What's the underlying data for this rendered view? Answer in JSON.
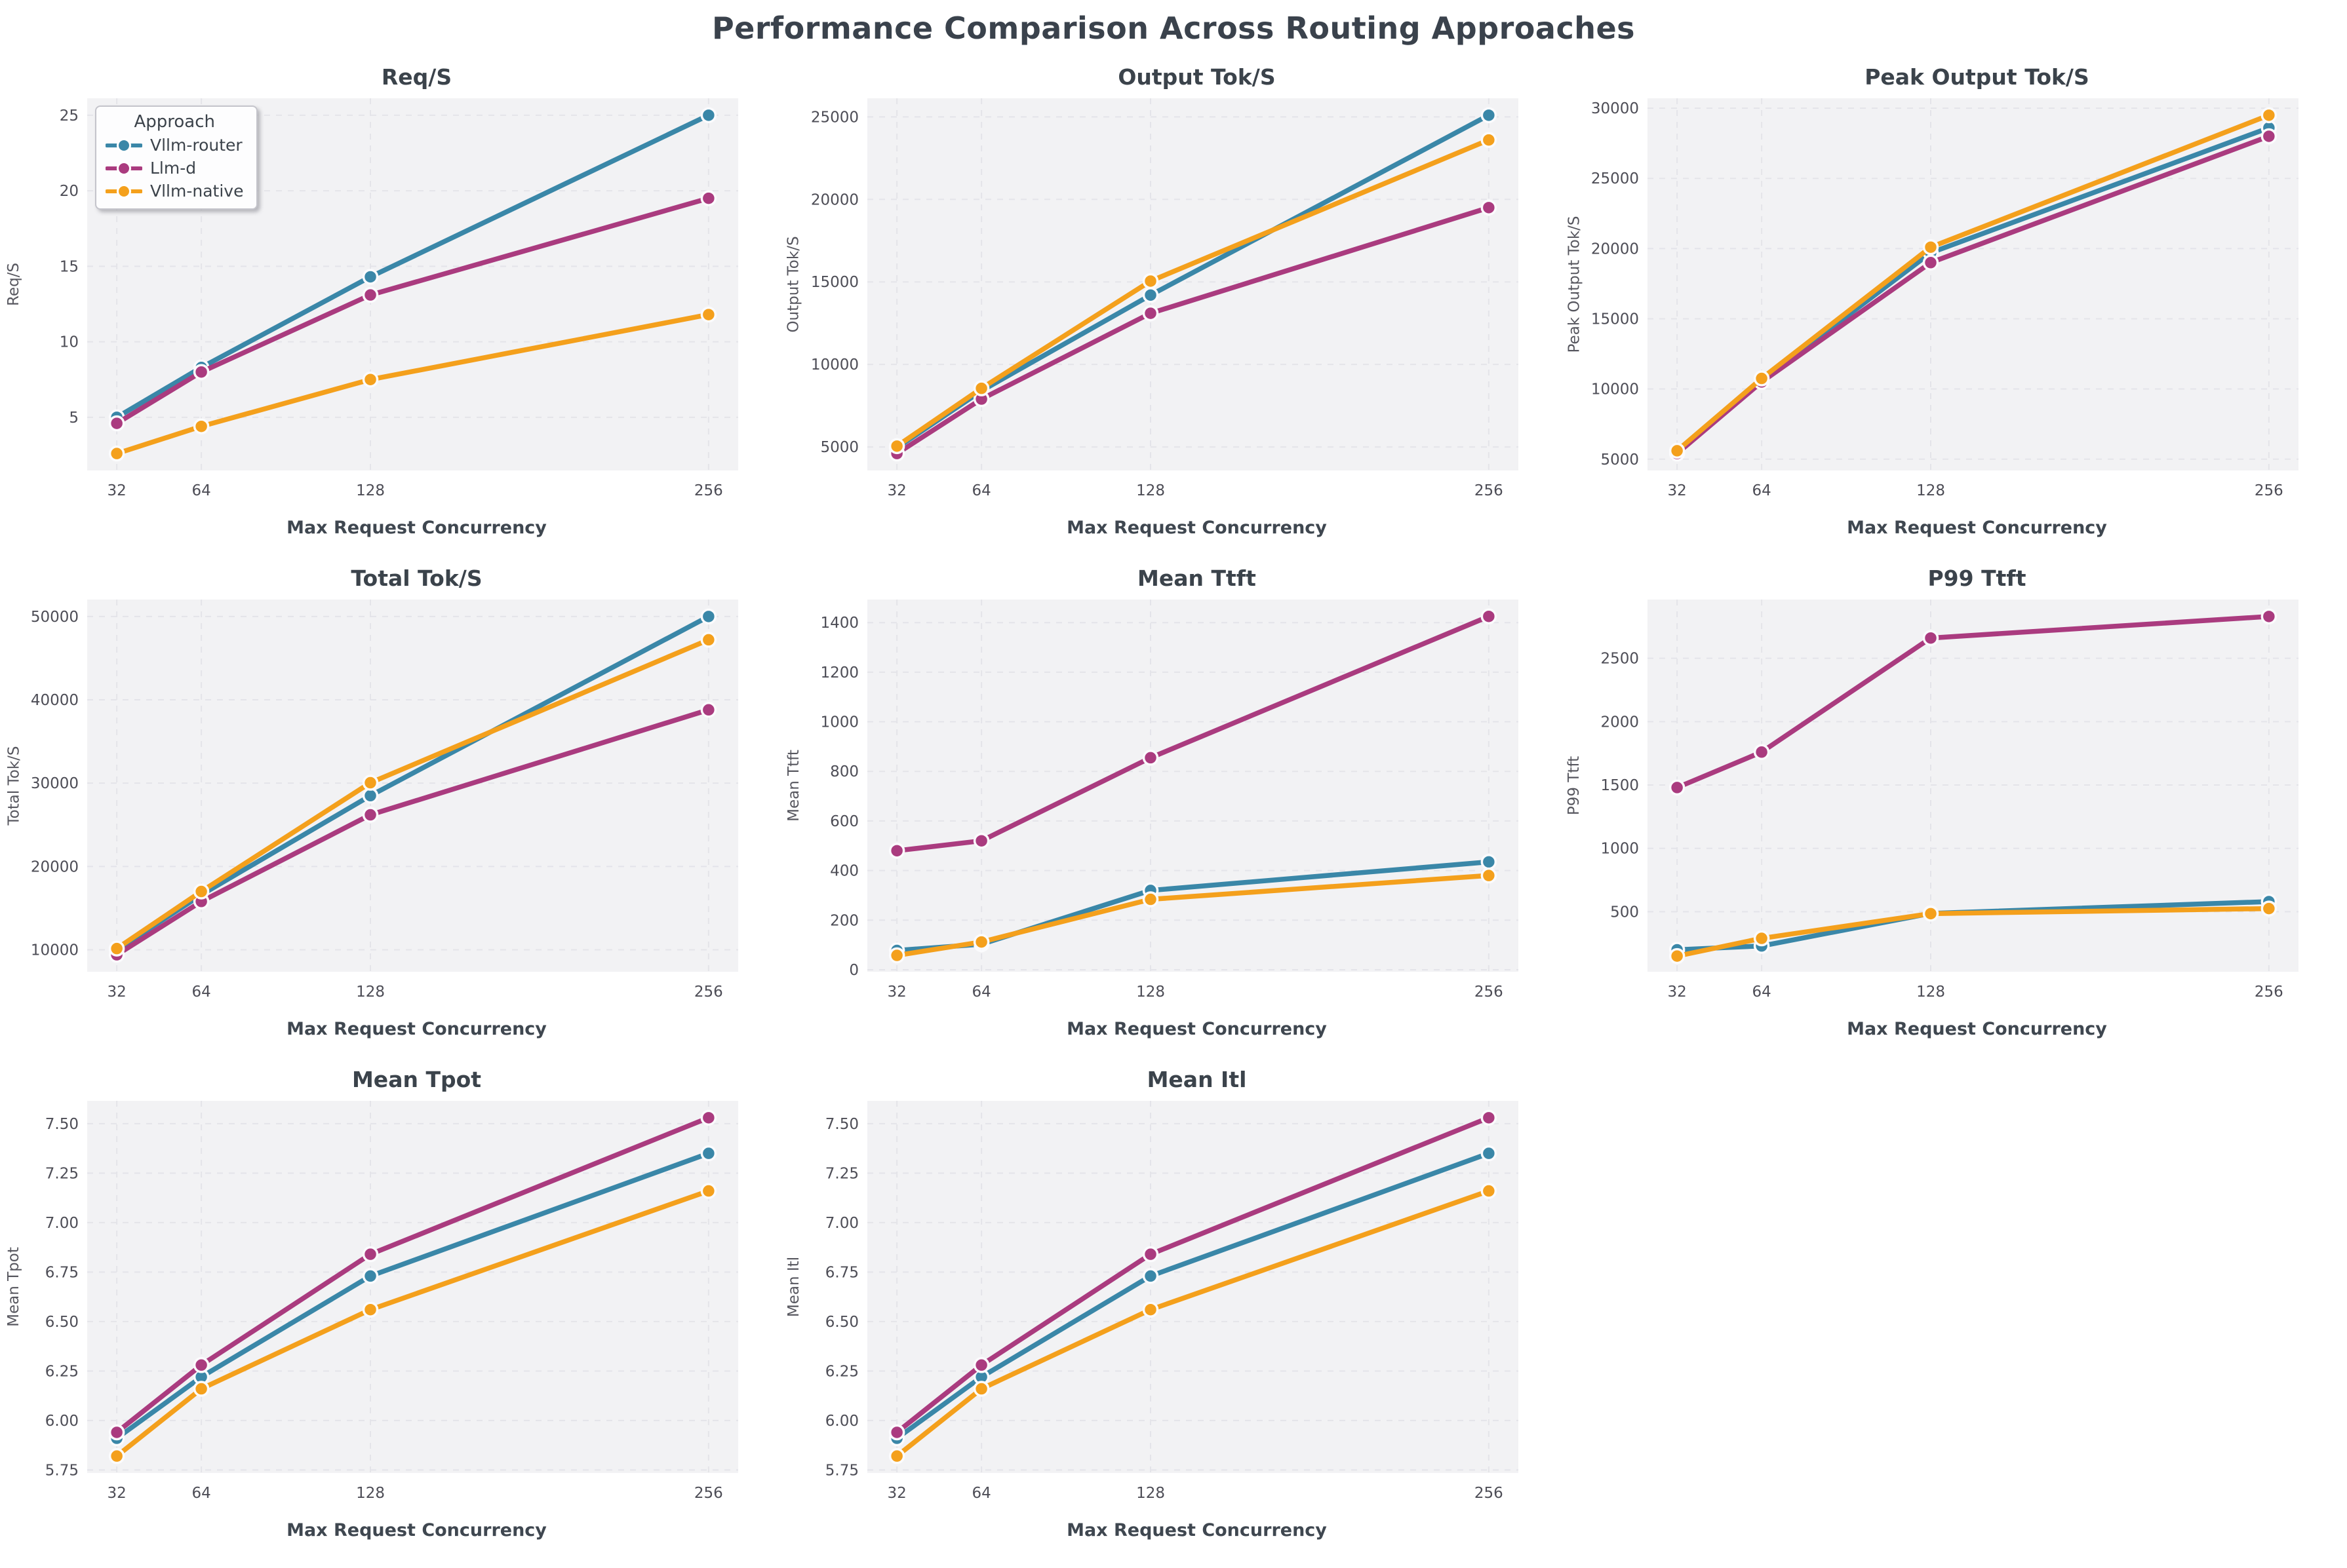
{
  "figure_title": "Performance Comparison Across Routing Approaches",
  "style": {
    "axes_bg": "#f2f2f4",
    "grid": "#e4e4e9",
    "tick": "#4d4d56",
    "marker_edge": "#fbfbfd",
    "title_color": "#3b434b",
    "series_colors": {
      "vllm_router": "#3a87a8",
      "llm_d": "#aa3b7f",
      "vllm_native": "#f4a01c"
    }
  },
  "legend": {
    "title": "Approach",
    "items": [
      "Vllm-router",
      "Llm-d",
      "Vllm-native"
    ]
  },
  "chart_data": [
    {
      "type": "line",
      "title": "Req/S",
      "xlabel": "Max Request Concurrency",
      "ylabel": "Req/S",
      "x": [
        32,
        64,
        128,
        256
      ],
      "xticks": [
        32,
        64,
        128,
        256
      ],
      "xlim": [
        20.8,
        267.2
      ],
      "ylim": [
        1.48,
        26.12
      ],
      "yticks": [
        5,
        10,
        15,
        20,
        25
      ],
      "grid": true,
      "legend_position": "upper-left",
      "show_legend": true,
      "series": [
        {
          "name": "Vllm-router",
          "color": "#3a87a8",
          "values": [
            5.0,
            8.3,
            14.3,
            25.0
          ]
        },
        {
          "name": "Llm-d",
          "color": "#aa3b7f",
          "values": [
            4.6,
            8.0,
            13.1,
            19.5
          ]
        },
        {
          "name": "Vllm-native",
          "color": "#f4a01c",
          "values": [
            2.6,
            4.4,
            7.5,
            11.8
          ]
        }
      ]
    },
    {
      "type": "line",
      "title": "Output Tok/S",
      "xlabel": "Max Request Concurrency",
      "ylabel": "Output Tok/S",
      "x": [
        32,
        64,
        128,
        256
      ],
      "xticks": [
        32,
        64,
        128,
        256
      ],
      "xlim": [
        20.8,
        267.2
      ],
      "ylim": [
        3575,
        26125
      ],
      "yticks": [
        5000,
        10000,
        15000,
        20000,
        25000
      ],
      "grid": true,
      "show_legend": false,
      "series": [
        {
          "name": "Vllm-router",
          "color": "#3a87a8",
          "values": [
            4950,
            8400,
            14200,
            25100
          ]
        },
        {
          "name": "Llm-d",
          "color": "#aa3b7f",
          "values": [
            4600,
            7900,
            13100,
            19500
          ]
        },
        {
          "name": "Vllm-native",
          "color": "#f4a01c",
          "values": [
            5050,
            8550,
            15050,
            23600
          ]
        }
      ]
    },
    {
      "type": "line",
      "title": "Peak Output Tok/S",
      "xlabel": "Max Request Concurrency",
      "ylabel": "Peak Output Tok/S",
      "x": [
        32,
        64,
        128,
        256
      ],
      "xticks": [
        32,
        64,
        128,
        256
      ],
      "xlim": [
        20.8,
        267.2
      ],
      "ylim": [
        4195,
        30705
      ],
      "yticks": [
        5000,
        10000,
        15000,
        20000,
        25000,
        30000
      ],
      "grid": true,
      "show_legend": false,
      "series": [
        {
          "name": "Vllm-router",
          "color": "#3a87a8",
          "values": [
            5500,
            10600,
            19700,
            28600
          ]
        },
        {
          "name": "Llm-d",
          "color": "#aa3b7f",
          "values": [
            5400,
            10500,
            19000,
            28000
          ]
        },
        {
          "name": "Vllm-native",
          "color": "#f4a01c",
          "values": [
            5600,
            10750,
            20100,
            29500
          ]
        }
      ]
    },
    {
      "type": "line",
      "title": "Total Tok/S",
      "xlabel": "Max Request Concurrency",
      "ylabel": "Total Tok/S",
      "x": [
        32,
        64,
        128,
        256
      ],
      "xticks": [
        32,
        64,
        128,
        256
      ],
      "xlim": [
        20.8,
        267.2
      ],
      "ylim": [
        7370,
        52030
      ],
      "yticks": [
        10000,
        20000,
        30000,
        40000,
        50000
      ],
      "grid": true,
      "show_legend": false,
      "series": [
        {
          "name": "Vllm-router",
          "color": "#3a87a8",
          "values": [
            10000,
            16600,
            28500,
            50000
          ]
        },
        {
          "name": "Llm-d",
          "color": "#aa3b7f",
          "values": [
            9400,
            15800,
            26200,
            38800
          ]
        },
        {
          "name": "Vllm-native",
          "color": "#f4a01c",
          "values": [
            10150,
            17000,
            30050,
            47200
          ]
        }
      ]
    },
    {
      "type": "line",
      "title": "Mean Ttft",
      "xlabel": "Max Request Concurrency",
      "ylabel": "Mean Ttft",
      "x": [
        32,
        64,
        128,
        256
      ],
      "xticks": [
        32,
        64,
        128,
        256
      ],
      "xlim": [
        20.8,
        267.2
      ],
      "ylim": [
        -8,
        1493
      ],
      "yticks": [
        0,
        200,
        400,
        600,
        800,
        1000,
        1200,
        1400
      ],
      "grid": true,
      "show_legend": false,
      "series": [
        {
          "name": "Vllm-router",
          "color": "#3a87a8",
          "values": [
            78,
            103,
            320,
            435
          ]
        },
        {
          "name": "Llm-d",
          "color": "#aa3b7f",
          "values": [
            480,
            520,
            855,
            1425
          ]
        },
        {
          "name": "Vllm-native",
          "color": "#f4a01c",
          "values": [
            58,
            112,
            284,
            380
          ]
        }
      ]
    },
    {
      "type": "line",
      "title": "P99 Ttft",
      "xlabel": "Max Request Concurrency",
      "ylabel": "P99 Ttft",
      "x": [
        32,
        64,
        128,
        256
      ],
      "xticks": [
        32,
        64,
        128,
        256
      ],
      "xlim": [
        20.8,
        267.2
      ],
      "ylim": [
        26.5,
        2963.5
      ],
      "yticks": [
        500,
        1000,
        1500,
        2000,
        2500
      ],
      "grid": true,
      "show_legend": false,
      "series": [
        {
          "name": "Vllm-router",
          "color": "#3a87a8",
          "values": [
            200,
            230,
            487,
            580
          ]
        },
        {
          "name": "Llm-d",
          "color": "#aa3b7f",
          "values": [
            1480,
            1760,
            2660,
            2830
          ]
        },
        {
          "name": "Vllm-native",
          "color": "#f4a01c",
          "values": [
            150,
            290,
            485,
            525
          ]
        }
      ]
    },
    {
      "type": "line",
      "title": "Mean Tpot",
      "xlabel": "Max Request Concurrency",
      "ylabel": "Mean Tpot",
      "x": [
        32,
        64,
        128,
        256
      ],
      "xticks": [
        32,
        64,
        128,
        256
      ],
      "xlim": [
        20.8,
        267.2
      ],
      "ylim": [
        5.7345,
        7.6155
      ],
      "yticks": [
        5.75,
        6.0,
        6.25,
        6.5,
        6.75,
        7.0,
        7.25,
        7.5
      ],
      "ytick_labels": [
        "5.75",
        "6.00",
        "6.25",
        "6.50",
        "6.75",
        "7.00",
        "7.25",
        "7.50"
      ],
      "grid": true,
      "show_legend": false,
      "series": [
        {
          "name": "Vllm-router",
          "color": "#3a87a8",
          "values": [
            5.91,
            6.22,
            6.73,
            7.35
          ]
        },
        {
          "name": "Llm-d",
          "color": "#aa3b7f",
          "values": [
            5.94,
            6.28,
            6.84,
            7.53
          ]
        },
        {
          "name": "Vllm-native",
          "color": "#f4a01c",
          "values": [
            5.82,
            6.16,
            6.56,
            7.16
          ]
        }
      ]
    },
    {
      "type": "line",
      "title": "Mean Itl",
      "xlabel": "Max Request Concurrency",
      "ylabel": "Mean Itl",
      "x": [
        32,
        64,
        128,
        256
      ],
      "xticks": [
        32,
        64,
        128,
        256
      ],
      "xlim": [
        20.8,
        267.2
      ],
      "ylim": [
        5.7345,
        7.6155
      ],
      "yticks": [
        5.75,
        6.0,
        6.25,
        6.5,
        6.75,
        7.0,
        7.25,
        7.5
      ],
      "ytick_labels": [
        "5.75",
        "6.00",
        "6.25",
        "6.50",
        "6.75",
        "7.00",
        "7.25",
        "7.50"
      ],
      "grid": true,
      "show_legend": false,
      "series": [
        {
          "name": "Vllm-router",
          "color": "#3a87a8",
          "values": [
            5.91,
            6.22,
            6.73,
            7.35
          ]
        },
        {
          "name": "Llm-d",
          "color": "#aa3b7f",
          "values": [
            5.94,
            6.28,
            6.84,
            7.53
          ]
        },
        {
          "name": "Vllm-native",
          "color": "#f4a01c",
          "values": [
            5.82,
            6.16,
            6.56,
            7.16
          ]
        }
      ]
    }
  ]
}
